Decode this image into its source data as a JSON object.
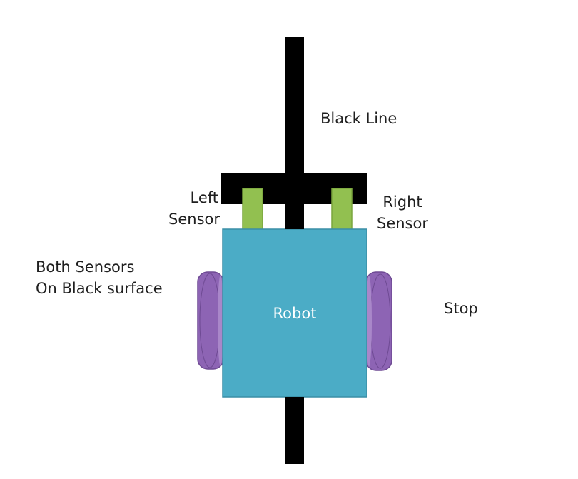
{
  "colors": {
    "line": "#000000",
    "robot_body": "#4bacc6",
    "robot_border": "#3a8ea6",
    "sensor": "#92c050",
    "sensor_border": "#7aa63e",
    "wheel": "#8d64b4",
    "wheel_shade": "#6e4a93",
    "wheel_rim": "#a987c9",
    "text": "#1f1f1f",
    "robot_text": "#ffffff"
  },
  "labels": {
    "black_line": "Black Line",
    "left_sensor": [
      "Left",
      "Sensor"
    ],
    "right_sensor": [
      "Right",
      "Sensor"
    ],
    "condition": [
      "Both Sensors",
      "On Black surface"
    ],
    "robot": "Robot",
    "action": "Stop"
  }
}
